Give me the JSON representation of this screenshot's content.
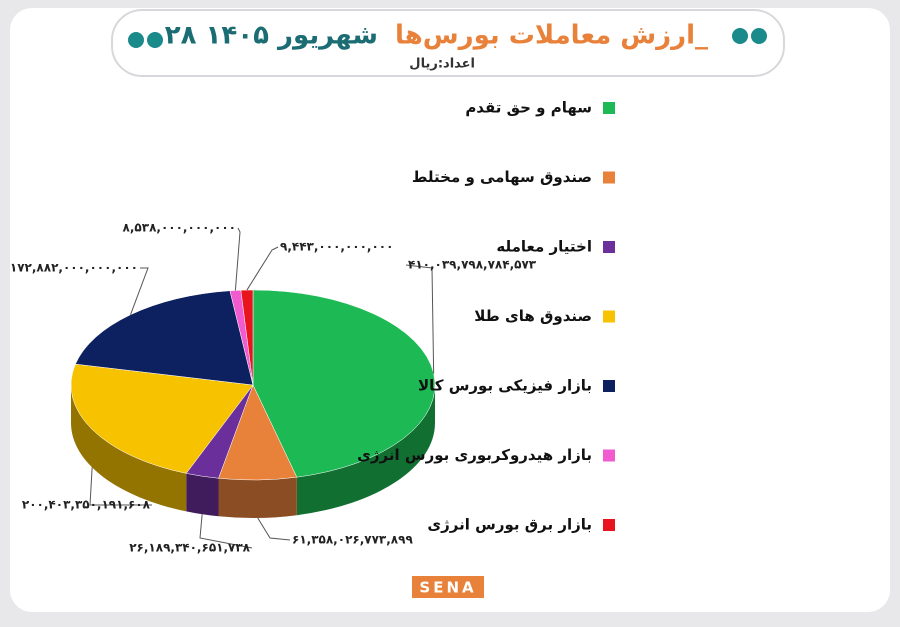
{
  "chart_data": {
    "type": "pie",
    "title": "ارزش معاملات بورس‌ها_",
    "title_date": "۲۸ شهریور ۱۴۰۵",
    "subtitle": "اعداد:ریال",
    "logo": "SENA",
    "categories": [
      "سهام و حق تقدم",
      "صندوق سهامی و مختلط",
      "اختیار معامله",
      "صندوق های طلا",
      "بازار فیزیکی بورس کالا",
      "بازار هیدروکربوری بورس انرژی",
      "بازار برق بورس انرژی"
    ],
    "values": [
      410039798784573,
      61358026773899,
      26189340651738,
      200403350191608,
      172882000000000,
      8538000000000,
      9443000000000
    ],
    "value_labels": [
      "۴۱۰,۰۳۹,۷۹۸,۷۸۴,۵۷۳",
      "۶۱,۳۵۸,۰۲۶,۷۷۳,۸۹۹",
      "۲۶,۱۸۹,۳۴۰,۶۵۱,۷۳۸",
      "۲۰۰,۴۰۳,۳۵۰,۱۹۱,۶۰۸",
      "۱۷۲,۸۸۲,۰۰۰,۰۰۰,۰۰۰",
      "۸,۵۳۸,۰۰۰,۰۰۰,۰۰۰",
      "۹,۴۴۳,۰۰۰,۰۰۰,۰۰۰"
    ],
    "colors": [
      "#1db954",
      "#e8813a",
      "#6a2f9a",
      "#f7c200",
      "#0d2060",
      "#f25bd0",
      "#e8141e"
    ]
  }
}
